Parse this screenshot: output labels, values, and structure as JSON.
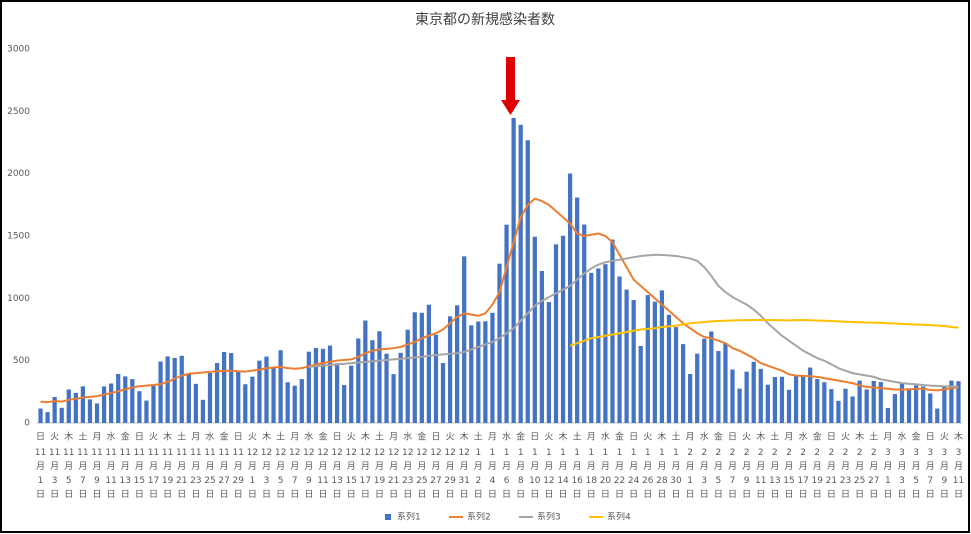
{
  "chart_data": {
    "type": "bar_line",
    "title": "東京都の新規感染者数",
    "ylim": [
      0,
      3000
    ],
    "yticks": [
      0,
      500,
      1000,
      1500,
      2000,
      2500,
      3000
    ],
    "grid": false,
    "legend": "bottom",
    "categories": [
      "11月1日",
      null,
      "11月3日",
      null,
      "11月5日",
      null,
      "11月7日",
      null,
      "11月9日",
      null,
      "11月11日",
      null,
      "11月13日",
      null,
      "11月15日",
      null,
      "11月17日",
      null,
      "11月19日",
      null,
      "11月21日",
      null,
      "11月23日",
      null,
      "11月25日",
      null,
      "11月27日",
      null,
      "11月29日",
      null,
      "12月1日",
      null,
      "12月3日",
      null,
      "12月5日",
      null,
      "12月7日",
      null,
      "12月9日",
      null,
      "12月11日",
      null,
      "12月13日",
      null,
      "12月15日",
      null,
      "12月17日",
      null,
      "12月19日",
      null,
      "12月21日",
      null,
      "12月23日",
      null,
      "12月25日",
      null,
      "12月27日",
      null,
      "12月29日",
      null,
      "12月31日",
      null,
      "1月2日",
      null,
      "1月4日",
      null,
      "1月6日",
      null,
      "1月8日",
      null,
      "1月10日",
      null,
      "1月12日",
      null,
      "1月14日",
      null,
      "1月16日",
      null,
      "1月18日",
      null,
      "1月20日",
      null,
      "1月22日",
      null,
      "1月24日",
      null,
      "1月26日",
      null,
      "1月28日",
      null,
      "1月30日",
      null,
      "2月1日",
      null,
      "2月3日",
      null,
      "2月5日",
      null,
      "2月7日",
      null,
      "2月9日",
      null,
      "2月11日",
      null,
      "2月13日",
      null,
      "2月15日",
      null,
      "2月17日",
      null,
      "2月19日",
      null,
      "2月21日",
      null,
      "2月23日",
      null,
      "2月25日",
      null,
      "2月27日",
      null,
      "3月1日",
      null,
      "3月3日",
      null,
      "3月5日",
      null,
      "3月7日",
      null,
      "3月9日",
      null,
      "3月11日"
    ],
    "weekdays": [
      "日",
      null,
      "火",
      null,
      "木",
      null,
      "土",
      null,
      "月",
      null,
      "水",
      null,
      "金",
      null,
      "日",
      null,
      "火",
      null,
      "木",
      null,
      "土",
      null,
      "月",
      null,
      "水",
      null,
      "金",
      null,
      "日",
      null,
      "火",
      null,
      "木",
      null,
      "土",
      null,
      "月",
      null,
      "水",
      null,
      "金",
      null,
      "日",
      null,
      "火",
      null,
      "木",
      null,
      "土",
      null,
      "月",
      null,
      "水",
      null,
      "金",
      null,
      "日",
      null,
      "火",
      null,
      "木",
      null,
      "土",
      null,
      "月",
      null,
      "水",
      null,
      "金",
      null,
      "日",
      null,
      "火",
      null,
      "木",
      null,
      "土",
      null,
      "月",
      null,
      "水",
      null,
      "金",
      null,
      "日",
      null,
      "火",
      null,
      "木",
      null,
      "土",
      null,
      "月",
      null,
      "水",
      null,
      "金",
      null,
      "日",
      null,
      "火",
      null,
      "木",
      null,
      "土",
      null,
      "月",
      null,
      "水",
      null,
      "金",
      null,
      "日",
      null,
      "火",
      null,
      "木",
      null,
      "土",
      null,
      "月",
      null,
      "水",
      null,
      "金",
      null,
      "日",
      null,
      "火",
      null,
      "木"
    ],
    "series": [
      {
        "name": "系列1",
        "type": "bar",
        "color": "#4472c4",
        "values": [
          116,
          87,
          209,
          122,
          269,
          242,
          294,
          189,
          157,
          293,
          317,
          393,
          374,
          352,
          255,
          180,
          298,
          493,
          534,
          522,
          539,
          391,
          314,
          186,
          401,
          481,
          570,
          561,
          418,
          311,
          372,
          500,
          533,
          449,
          584,
          327,
          299,
          352,
          572,
          602,
          595,
          621,
          480,
          305,
          460,
          678,
          822,
          664,
          736,
          556,
          392,
          563,
          748,
          888,
          884,
          949,
          708,
          481,
          856,
          944,
          1337,
          783,
          814,
          816,
          884,
          1278,
          1591,
          2447,
          2392,
          2268,
          1494,
          1219,
          970,
          1433,
          1502,
          2001,
          1809,
          1592,
          1204,
          1240,
          1274,
          1471,
          1175,
          1070,
          986,
          618,
          1026,
          973,
          1064,
          868,
          769,
          633,
          393,
          556,
          676,
          734,
          577,
          639,
          429,
          276,
          412,
          491,
          434,
          307,
          369,
          371,
          266,
          378,
          378,
          445,
          353,
          327,
          272,
          178,
          275,
          213,
          340,
          270,
          337,
          329,
          121,
          232,
          316,
          279,
          301,
          293,
          237,
          116,
          290,
          340,
          335
        ]
      },
      {
        "name": "系列2",
        "type": "line",
        "color": "#ed7d31",
        "values": [
          170,
          168,
          175,
          172,
          185,
          195,
          205,
          210,
          215,
          228,
          240,
          255,
          270,
          285,
          295,
          300,
          305,
          312,
          330,
          355,
          380,
          395,
          400,
          405,
          410,
          415,
          418,
          420,
          415,
          412,
          420,
          428,
          440,
          445,
          450,
          440,
          435,
          440,
          455,
          470,
          480,
          490,
          500,
          505,
          510,
          530,
          560,
          580,
          590,
          595,
          600,
          610,
          630,
          650,
          680,
          700,
          720,
          750,
          800,
          850,
          880,
          870,
          860,
          880,
          950,
          1050,
          1250,
          1450,
          1650,
          1750,
          1800,
          1780,
          1750,
          1700,
          1650,
          1600,
          1520,
          1500,
          1510,
          1520,
          1500,
          1450,
          1350,
          1250,
          1150,
          1100,
          1050,
          1000,
          950,
          900,
          850,
          800,
          760,
          720,
          690,
          680,
          660,
          640,
          600,
          580,
          550,
          520,
          480,
          460,
          440,
          420,
          390,
          380,
          378,
          375,
          370,
          360,
          350,
          340,
          330,
          320,
          300,
          290,
          285,
          280,
          275,
          270,
          268,
          270,
          275,
          275,
          265,
          262,
          270,
          280,
          285
        ]
      },
      {
        "name": "系列3",
        "type": "line",
        "color": "#a5a5a5",
        "values": [
          null,
          null,
          null,
          null,
          null,
          null,
          null,
          null,
          null,
          null,
          null,
          null,
          null,
          null,
          null,
          null,
          null,
          null,
          null,
          null,
          null,
          null,
          null,
          null,
          null,
          null,
          null,
          null,
          null,
          null,
          null,
          null,
          null,
          null,
          null,
          null,
          null,
          null,
          450,
          455,
          460,
          465,
          470,
          475,
          480,
          485,
          490,
          495,
          500,
          505,
          510,
          515,
          520,
          525,
          530,
          540,
          545,
          550,
          555,
          560,
          570,
          590,
          610,
          630,
          650,
          680,
          720,
          760,
          820,
          880,
          940,
          980,
          1010,
          1040,
          1070,
          1100,
          1150,
          1200,
          1240,
          1270,
          1290,
          1300,
          1310,
          1320,
          1330,
          1340,
          1345,
          1350,
          1348,
          1345,
          1340,
          1330,
          1320,
          1300,
          1250,
          1180,
          1100,
          1050,
          1010,
          980,
          950,
          910,
          860,
          800,
          750,
          700,
          660,
          620,
          580,
          550,
          520,
          500,
          470,
          440,
          420,
          400,
          390,
          380,
          370,
          350,
          340,
          330,
          320,
          315,
          310,
          305,
          300,
          298,
          295,
          293,
          290
        ]
      },
      {
        "name": "系列4",
        "type": "line",
        "color": "#ffc000",
        "values": [
          null,
          null,
          null,
          null,
          null,
          null,
          null,
          null,
          null,
          null,
          null,
          null,
          null,
          null,
          null,
          null,
          null,
          null,
          null,
          null,
          null,
          null,
          null,
          null,
          null,
          null,
          null,
          null,
          null,
          null,
          null,
          null,
          null,
          null,
          null,
          null,
          null,
          null,
          null,
          null,
          null,
          null,
          null,
          null,
          null,
          null,
          null,
          null,
          null,
          null,
          null,
          null,
          null,
          null,
          null,
          null,
          null,
          null,
          null,
          null,
          null,
          null,
          null,
          null,
          null,
          null,
          null,
          null,
          null,
          null,
          null,
          null,
          null,
          null,
          null,
          620,
          640,
          660,
          680,
          690,
          700,
          710,
          720,
          730,
          740,
          750,
          755,
          760,
          770,
          775,
          780,
          790,
          800,
          805,
          810,
          815,
          818,
          820,
          822,
          824,
          825,
          825,
          826,
          826,
          825,
          824,
          823,
          825,
          826,
          824,
          822,
          820,
          818,
          815,
          812,
          810,
          808,
          806,
          805,
          803,
          800,
          798,
          795,
          792,
          790,
          788,
          785,
          782,
          778,
          770,
          765
        ]
      }
    ]
  }
}
